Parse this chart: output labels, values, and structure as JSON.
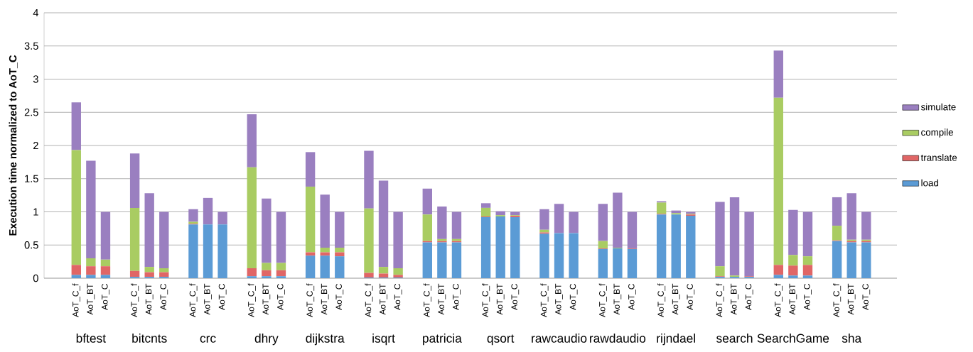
{
  "chart_data": {
    "type": "bar",
    "stacked": true,
    "ylabel": "Execution time normalized to AoT_C",
    "categories": [
      "AoT_C_f",
      "AoT_BT",
      "AoT_C",
      "AoT_C_f",
      "AoT_BT",
      "AoT_C",
      "AoT_C_f",
      "AoT_BT",
      "AoT_C",
      "AoT_C_f",
      "AoT_BT",
      "AoT_C",
      "AoT_C_f",
      "AoT_BT",
      "AoT_C",
      "AoT_C_f",
      "AoT_BT",
      "AoT_C",
      "AoT_C_f",
      "AoT_BT",
      "AoT_C",
      "AoT_C_f",
      "AoT_BT",
      "AoT_C",
      "AoT_C_f",
      "AoT_BT",
      "AoT_C",
      "AoT_C_f",
      "AoT_BT",
      "AoT_C",
      "AoT_C_f",
      "AoT_BT",
      "AoT_C",
      "AoT_C_f",
      "AoT_BT",
      "AoT_C",
      "AoT_C_f",
      "AoT_BT",
      "AoT_C",
      "AoT_C_f",
      "AoT_BT",
      "AoT_C"
    ],
    "annotations": [
      "bftest",
      "bitcnts",
      "crc",
      "dhry",
      "dijkstra",
      "isqrt",
      "patricia",
      "qsort",
      "rawcaudio",
      "rawdaudio",
      "rijndael",
      "search",
      "SearchGame",
      "sha"
    ],
    "series": [
      {
        "name": "load",
        "color": "#5b9bd5",
        "values": [
          0.05,
          0.05,
          0.05,
          0.02,
          0.02,
          0.02,
          0.81,
          0.81,
          0.81,
          0.03,
          0.03,
          0.03,
          0.34,
          0.34,
          0.33,
          0.01,
          0.01,
          0.01,
          0.54,
          0.54,
          0.54,
          0.92,
          0.93,
          0.92,
          0.67,
          0.68,
          0.68,
          0.44,
          0.45,
          0.44,
          0.96,
          0.96,
          0.94,
          0.02,
          0.02,
          0.02,
          0.05,
          0.04,
          0.04,
          0.56,
          0.54,
          0.54
        ]
      },
      {
        "name": "translate",
        "color": "#e06666",
        "values": [
          0.15,
          0.13,
          0.13,
          0.09,
          0.07,
          0.07,
          0.01,
          0,
          0,
          0.12,
          0.09,
          0.09,
          0.05,
          0.05,
          0.06,
          0.07,
          0.06,
          0.04,
          0.02,
          0.02,
          0.02,
          0.01,
          0,
          0.02,
          0.02,
          0,
          0,
          0.01,
          0,
          0.01,
          0.01,
          0,
          0.02,
          0.01,
          0,
          0.01,
          0.15,
          0.15,
          0.16,
          0.01,
          0.02,
          0.02
        ]
      },
      {
        "name": "compile",
        "color": "#a9cc62",
        "values": [
          1.73,
          0.12,
          0.1,
          0.95,
          0.08,
          0.06,
          0.03,
          0,
          0,
          1.52,
          0.11,
          0.11,
          0.99,
          0.07,
          0.07,
          0.97,
          0.1,
          0.1,
          0.4,
          0.03,
          0.03,
          0.13,
          0.02,
          0.01,
          0.04,
          0,
          0,
          0.11,
          0.01,
          0,
          0.17,
          0.02,
          0.01,
          0.15,
          0.02,
          0,
          2.52,
          0.16,
          0.13,
          0.22,
          0.02,
          0.02
        ]
      },
      {
        "name": "simulate",
        "color": "#9a7fc0",
        "values": [
          0.72,
          1.47,
          0.72,
          0.82,
          1.11,
          0.85,
          0.19,
          0.4,
          0.19,
          0.8,
          0.97,
          0.77,
          0.52,
          0.8,
          0.54,
          0.87,
          1.3,
          0.85,
          0.39,
          0.49,
          0.41,
          0.07,
          0.06,
          0.05,
          0.31,
          0.44,
          0.32,
          0.56,
          0.83,
          0.55,
          0.02,
          0.04,
          0.03,
          0.97,
          1.18,
          0.97,
          0.71,
          0.68,
          0.67,
          0.43,
          0.7,
          0.42
        ]
      }
    ],
    "ylim": [
      0,
      4
    ],
    "yticks": [
      0,
      0.5,
      1,
      1.5,
      2,
      2.5,
      3,
      3.5,
      4
    ],
    "grid": "y",
    "legend": "right"
  }
}
